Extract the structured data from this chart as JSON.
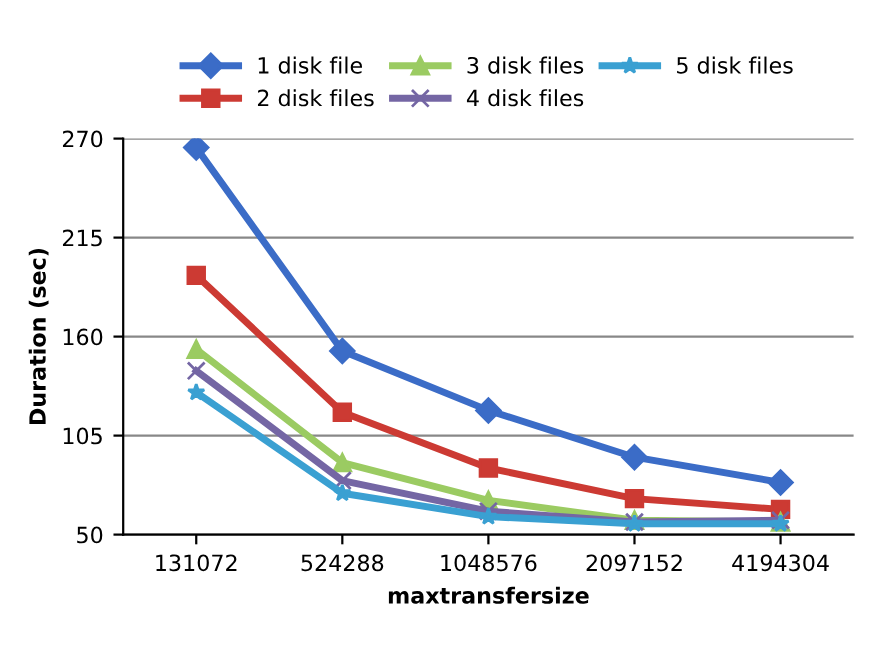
{
  "chart_data": {
    "type": "line",
    "xlabel": "maxtransfersize",
    "ylabel": "Duration (sec)",
    "categories": [
      "131072",
      "524288",
      "1048576",
      "2097152",
      "4194304"
    ],
    "series": [
      {
        "name": "1 disk file",
        "color": "#3b6cc7",
        "marker": "diamond",
        "values": [
          265,
          152,
          119,
          93,
          79
        ]
      },
      {
        "name": "2 disk files",
        "color": "#cc3a33",
        "marker": "square",
        "values": [
          194,
          118,
          87,
          70,
          64
        ]
      },
      {
        "name": "3 disk files",
        "color": "#9bcb62",
        "marker": "triangle",
        "values": [
          153,
          90,
          69,
          58,
          57
        ]
      },
      {
        "name": "4 disk files",
        "color": "#7466a4",
        "marker": "cross",
        "values": [
          141,
          80,
          63,
          57,
          58
        ]
      },
      {
        "name": "5 disk files",
        "color": "#3aa0d2",
        "marker": "star",
        "values": [
          129,
          73,
          60,
          56,
          56
        ]
      }
    ],
    "ylim": [
      50,
      270
    ],
    "yticks": [
      50,
      105,
      160,
      215,
      270
    ],
    "grid": "y",
    "legend": "top"
  }
}
